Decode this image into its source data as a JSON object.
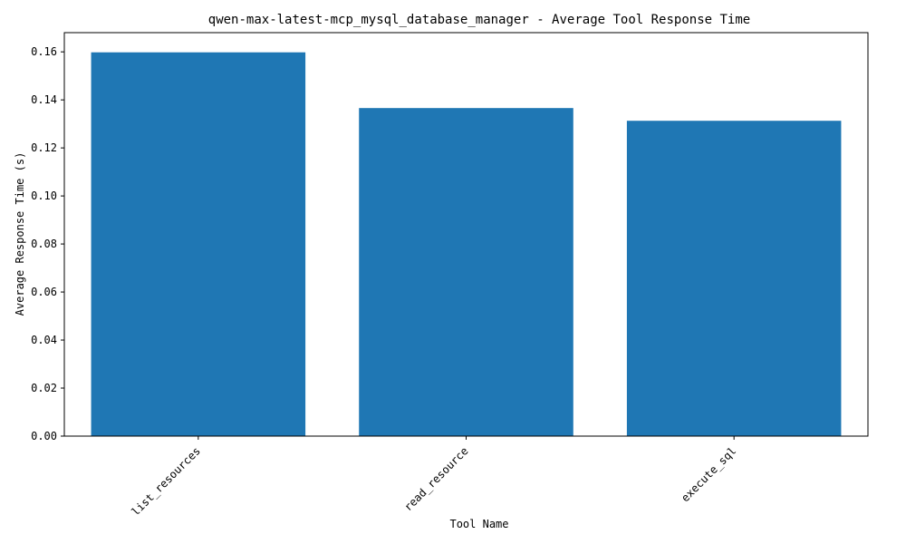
{
  "chart_data": {
    "type": "bar",
    "title": "qwen-max-latest-mcp_mysql_database_manager - Average Tool Response Time",
    "xlabel": "Tool Name",
    "ylabel": "Average Response Time (s)",
    "categories": [
      "list_resources",
      "read_resource",
      "execute_sql"
    ],
    "values": [
      0.1598,
      0.1366,
      0.1313
    ],
    "ylim": [
      0,
      0.168
    ],
    "yticks": [
      "0.00",
      "0.02",
      "0.04",
      "0.06",
      "0.08",
      "0.10",
      "0.12",
      "0.14",
      "0.16"
    ],
    "bar_color": "#1f77b4",
    "grid": false,
    "legend": "none"
  }
}
